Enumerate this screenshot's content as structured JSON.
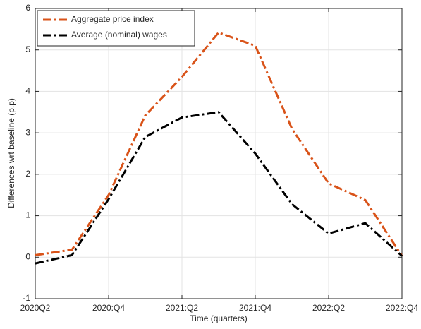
{
  "chart_data": {
    "type": "line",
    "xlabel": "Time (quarters)",
    "ylabel": "Differences wrt baseline (p.p)",
    "categories": [
      "2020Q2",
      null,
      "2020:Q4",
      null,
      "2021:Q2",
      null,
      "2021:Q4",
      null,
      "2022:Q2",
      null,
      "2022:Q4"
    ],
    "series": [
      {
        "name": "Aggregate price index",
        "color": "#d95319",
        "values": [
          0.05,
          0.18,
          1.5,
          3.42,
          4.35,
          5.42,
          5.1,
          3.1,
          1.78,
          1.38,
          0.03
        ]
      },
      {
        "name": "Average (nominal) wages",
        "color": "#000000",
        "values": [
          -0.15,
          0.05,
          1.4,
          2.9,
          3.37,
          3.5,
          2.5,
          1.28,
          0.57,
          0.82,
          0.03
        ]
      }
    ],
    "ylim": [
      -1,
      6
    ],
    "yticks": [
      -1,
      0,
      1,
      2,
      3,
      4,
      5,
      6
    ],
    "grid": true,
    "legend": "upper-left"
  }
}
